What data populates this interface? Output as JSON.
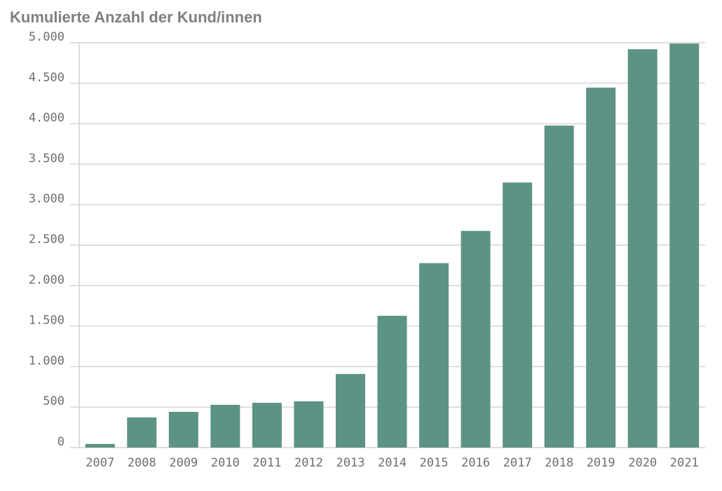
{
  "chart_data": {
    "type": "bar",
    "title": "Kumulierte Anzahl der Kund/innen",
    "xlabel": "",
    "ylabel": "",
    "categories": [
      "2007",
      "2008",
      "2009",
      "2010",
      "2011",
      "2012",
      "2013",
      "2014",
      "2015",
      "2016",
      "2017",
      "2018",
      "2019",
      "2020",
      "2021"
    ],
    "values": [
      45,
      372,
      441,
      528,
      553,
      571,
      909,
      1628,
      2278,
      2676,
      3274,
      3977,
      4445,
      4920,
      4990
    ],
    "ylim": [
      0,
      5000
    ],
    "yticks": [
      0,
      500,
      1000,
      1500,
      2000,
      2500,
      3000,
      3500,
      4000,
      4500,
      5000
    ],
    "ytick_labels": [
      "0",
      "500",
      "1.000",
      "1.500",
      "2.000",
      "2.500",
      "3.000",
      "3.500",
      "4.000",
      "4.500",
      "5.000"
    ],
    "grid": true,
    "bar_color": "#5c9384",
    "grid_color": "#d4d4d4"
  }
}
